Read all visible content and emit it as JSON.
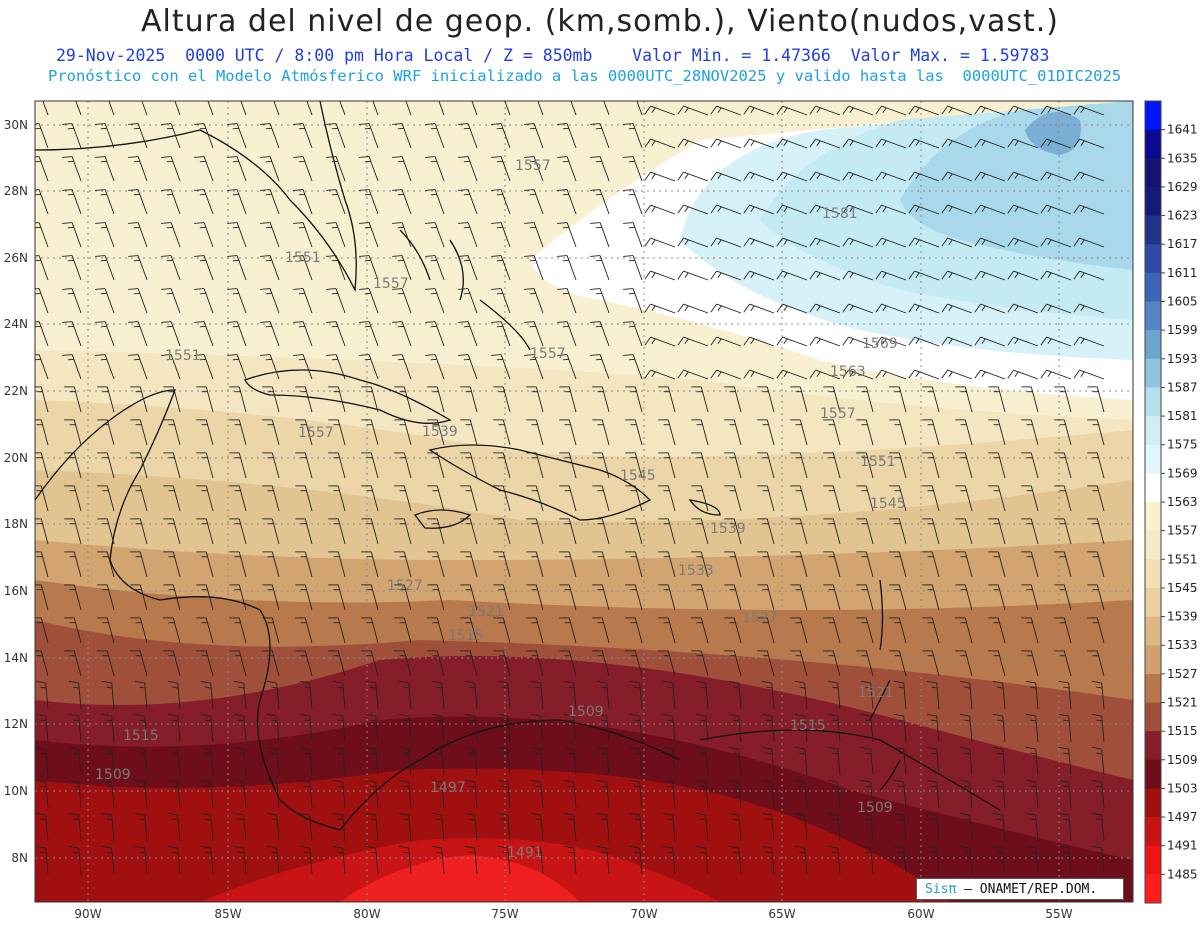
{
  "header": {
    "title": "Altura del nivel de geop. (km,somb.), Viento(nudos,vast.)",
    "line1": "29-Nov-2025  0000 UTC / 8:00 pm Hora Local / Z = 850mb    Valor Min. = 1.47366  Valor Max. = 1.59783",
    "line2": "Pronóstico con el Modelo Atmósferico WRF inicializado a las 0000UTC_28NOV2025 y valido hasta las  0000UTC_01DIC2025"
  },
  "map": {
    "lon_labels": [
      "90W",
      "85W",
      "80W",
      "75W",
      "70W",
      "65W",
      "60W",
      "55W"
    ],
    "lat_labels": [
      "30N",
      "28N",
      "26N",
      "24N",
      "22N",
      "20N",
      "18N",
      "16N",
      "14N",
      "12N",
      "10N",
      "8N"
    ],
    "contour_labels": [
      "1557",
      "1551",
      "1557",
      "1557",
      "1551",
      "1557",
      "1581",
      "1569",
      "1563",
      "1557",
      "1545",
      "1539",
      "1551",
      "1545",
      "1539",
      "1527",
      "1533",
      "1527",
      "1521",
      "1515",
      "1521",
      "1515",
      "1509",
      "1515",
      "1509",
      "1497",
      "1491",
      "1509"
    ]
  },
  "colorbar": {
    "levels": [
      "1641",
      "1635",
      "1629",
      "1623",
      "1617",
      "1611",
      "1605",
      "1599",
      "1593",
      "1587",
      "1581",
      "1575",
      "1569",
      "1563",
      "1557",
      "1551",
      "1545",
      "1539",
      "1533",
      "1527",
      "1521",
      "1515",
      "1509",
      "1503",
      "1497",
      "1491",
      "1485"
    ],
    "colors": [
      "#0014ff",
      "#0a0a90",
      "#14146e",
      "#141a78",
      "#223488",
      "#2e4aa4",
      "#3c64b8",
      "#5484c4",
      "#6ca4d0",
      "#90c4de",
      "#b4e0ea",
      "#d0eef4",
      "#e0f6fa",
      "#ffffff",
      "#f8f0d0",
      "#f6eac8",
      "#f2e0b4",
      "#ead09c",
      "#deb884",
      "#d0a070",
      "#b8784c",
      "#a0503a",
      "#861e2a",
      "#6e0e1a",
      "#a01010",
      "#c81414",
      "#ee1414",
      "#ff1e1e"
    ]
  },
  "credit": {
    "brand": "Sisπ",
    "text": " – ONAMET/REP.DOM."
  }
}
